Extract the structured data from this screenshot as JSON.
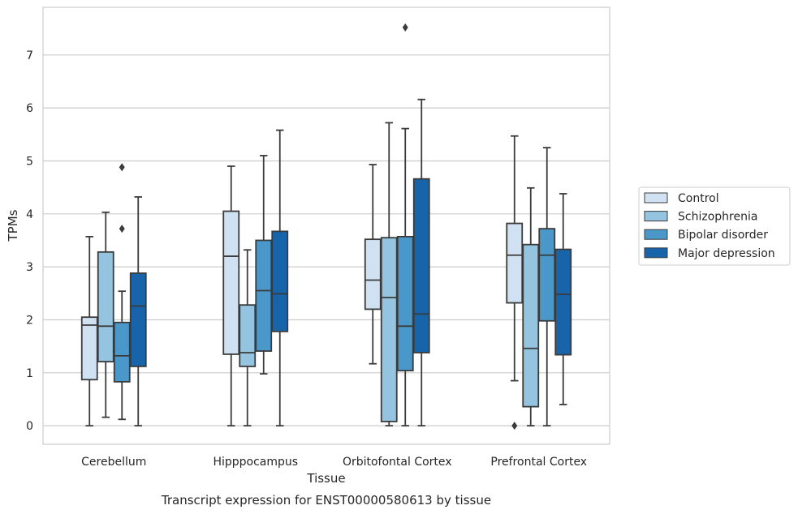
{
  "chart_data": {
    "type": "boxplot",
    "caption": "Transcript expression for ENST00000580613 by tissue",
    "xlabel": "Tissue",
    "ylabel": "TPMs",
    "ylim": [
      -0.35,
      7.9
    ],
    "yticks": [
      0,
      1,
      2,
      3,
      4,
      5,
      6,
      7
    ],
    "grid": "horizontal",
    "legend_position": "right",
    "categories": [
      "Cerebellum",
      "Hipppocampus",
      "Orbitofontal Cortex",
      "Prefrontal Cortex"
    ],
    "series": [
      {
        "name": "Control",
        "color": "#d0e1f2",
        "boxes": [
          {
            "whislo": 0.0,
            "q1": 0.87,
            "med": 1.9,
            "q3": 2.05,
            "whishi": 3.57,
            "fliers": []
          },
          {
            "whislo": 0.0,
            "q1": 1.35,
            "med": 3.2,
            "q3": 4.05,
            "whishi": 4.9,
            "fliers": []
          },
          {
            "whislo": 1.17,
            "q1": 2.2,
            "med": 2.75,
            "q3": 3.52,
            "whishi": 4.93,
            "fliers": []
          },
          {
            "whislo": 0.85,
            "q1": 2.32,
            "med": 3.22,
            "q3": 3.82,
            "whishi": 5.47,
            "fliers": [
              0.0
            ]
          }
        ]
      },
      {
        "name": "Schizophrenia",
        "color": "#94c4df",
        "boxes": [
          {
            "whislo": 0.16,
            "q1": 1.21,
            "med": 1.88,
            "q3": 3.28,
            "whishi": 4.03,
            "fliers": []
          },
          {
            "whislo": 0.0,
            "q1": 1.12,
            "med": 1.38,
            "q3": 2.28,
            "whishi": 3.32,
            "fliers": []
          },
          {
            "whislo": 0.0,
            "q1": 0.08,
            "med": 2.42,
            "q3": 3.55,
            "whishi": 5.72,
            "fliers": []
          },
          {
            "whislo": 0.0,
            "q1": 0.36,
            "med": 1.46,
            "q3": 3.42,
            "whishi": 4.49,
            "fliers": []
          }
        ]
      },
      {
        "name": "Bipolar disorder",
        "color": "#4a98c9",
        "boxes": [
          {
            "whislo": 0.12,
            "q1": 0.83,
            "med": 1.32,
            "q3": 1.95,
            "whishi": 2.54,
            "fliers": [
              3.72,
              4.88
            ]
          },
          {
            "whislo": 0.98,
            "q1": 1.41,
            "med": 2.55,
            "q3": 3.5,
            "whishi": 5.1,
            "fliers": []
          },
          {
            "whislo": 0.0,
            "q1": 1.04,
            "med": 1.88,
            "q3": 3.57,
            "whishi": 5.61,
            "fliers": [
              7.52
            ]
          },
          {
            "whislo": 0.0,
            "q1": 1.98,
            "med": 3.22,
            "q3": 3.72,
            "whishi": 5.25,
            "fliers": []
          }
        ]
      },
      {
        "name": "Major depression",
        "color": "#1764ab",
        "boxes": [
          {
            "whislo": 0.0,
            "q1": 1.12,
            "med": 2.26,
            "q3": 2.88,
            "whishi": 4.32,
            "fliers": []
          },
          {
            "whislo": 0.0,
            "q1": 1.78,
            "med": 2.49,
            "q3": 3.67,
            "whishi": 5.58,
            "fliers": []
          },
          {
            "whislo": 0.0,
            "q1": 1.38,
            "med": 2.11,
            "q3": 4.66,
            "whishi": 6.16,
            "fliers": []
          },
          {
            "whislo": 0.4,
            "q1": 1.34,
            "med": 2.48,
            "q3": 3.33,
            "whishi": 4.38,
            "fliers": []
          }
        ]
      }
    ]
  }
}
